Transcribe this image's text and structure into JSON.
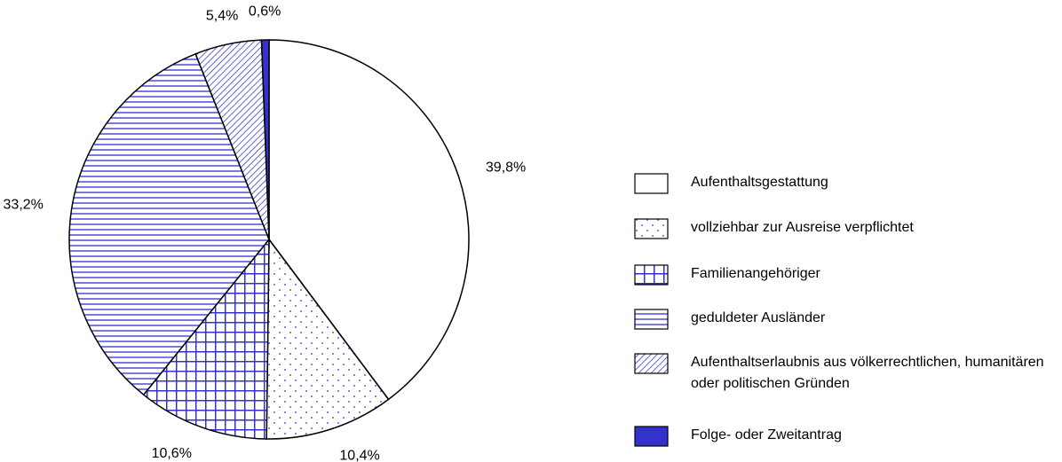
{
  "chart_data": {
    "type": "pie",
    "categories": [
      "Aufenthaltsgestattung",
      "vollziehbar zur Ausreise verpflichtet",
      "Familienangehöriger",
      "geduldeter Ausländer",
      "Aufenthaltserlaubnis aus völkerrechtlichen, humanitären oder politischen Gründen",
      "Folge- oder Zweitantrag"
    ],
    "values": [
      39.8,
      10.4,
      10.6,
      33.2,
      5.4,
      0.6
    ],
    "value_labels": [
      "39,8%",
      "10,4%",
      "10,6%",
      "33,2%",
      "5,4%",
      "0,6%"
    ],
    "color": "#3333cc",
    "patterns": [
      "none",
      "dots",
      "grid",
      "hlines",
      "diagonal",
      "solid"
    ]
  }
}
